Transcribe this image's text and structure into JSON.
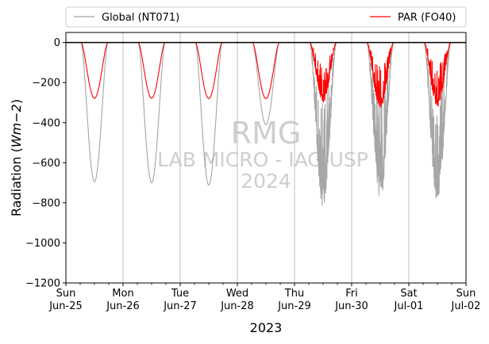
{
  "chart_data": {
    "type": "line",
    "title": "",
    "xlabel": "2023",
    "ylabel_prefix": "Radiation (",
    "ylabel_unit": "Wm−2",
    "ylabel_suffix": ")",
    "ylim": [
      -1200,
      50
    ],
    "xlim": [
      0,
      7
    ],
    "grid": "vertical-major",
    "legend": {
      "placement": "top, above plot",
      "entries": [
        {
          "name": "Global (NT071)",
          "color": "#a6a6a6"
        },
        {
          "name": "PAR (FO40)",
          "color": "#ff0000"
        }
      ]
    },
    "x_ticks": [
      {
        "day": "Sun",
        "date": "Jun-25"
      },
      {
        "day": "Mon",
        "date": "Jun-26"
      },
      {
        "day": "Tue",
        "date": "Jun-27"
      },
      {
        "day": "Wed",
        "date": "Jun-28"
      },
      {
        "day": "Thu",
        "date": "Jun-29"
      },
      {
        "day": "Fri",
        "date": "Jun-30"
      },
      {
        "day": "Sat",
        "date": "Jul-01"
      },
      {
        "day": "Sun",
        "date": "Jul-02"
      }
    ],
    "y_ticks": [
      "0",
      "−200",
      "−400",
      "−600",
      "−800",
      "−1000",
      "−1200"
    ],
    "y_tick_values": [
      0,
      -200,
      -400,
      -600,
      -800,
      -1000,
      -1200
    ],
    "series": [
      {
        "name": "Global (NT071)",
        "color": "#a6a6a6",
        "daily_minimum": [
          -695,
          -700,
          -712,
          -410,
          -825,
          -790,
          -805
        ]
      },
      {
        "name": "PAR (FO40)",
        "color": "#ff0000",
        "daily_minimum": [
          -278,
          -278,
          -280,
          -280,
          -300,
          -330,
          -320
        ]
      }
    ],
    "reference_line": {
      "y": 0,
      "color": "#000000"
    },
    "watermark": [
      "RMG",
      "LAB MICRO - IAG USP",
      "2024"
    ]
  }
}
